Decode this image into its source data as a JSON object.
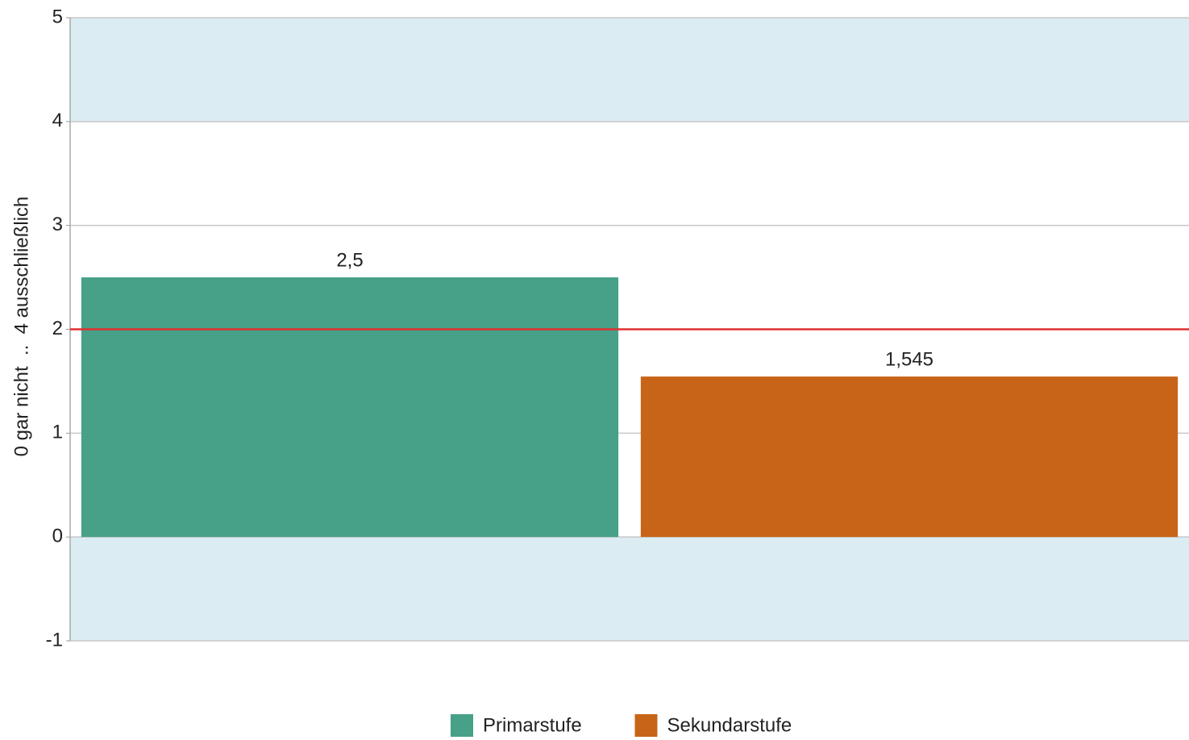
{
  "chart_data": {
    "type": "bar",
    "y_label": "0 gar nicht  ..  4 ausschließlich",
    "categories": [
      null
    ],
    "series": [
      {
        "name": "Primarstufe",
        "color": "#47a088",
        "values": [
          2.5
        ],
        "value_labels": [
          "2,5"
        ]
      },
      {
        "name": "Sekundarstufe",
        "color": "#c86418",
        "values": [
          1.545
        ],
        "value_labels": [
          "1,545"
        ]
      }
    ],
    "ylim": [
      -1,
      5
    ],
    "yticks": [
      -1,
      0,
      1,
      2,
      3,
      4,
      5
    ],
    "grid": true,
    "bands": [
      [
        4,
        5
      ],
      [
        -1,
        0
      ]
    ],
    "band_color": "#dbecf3",
    "reference_line": 2,
    "reference_color": "#e03030",
    "legend": "bottom"
  }
}
